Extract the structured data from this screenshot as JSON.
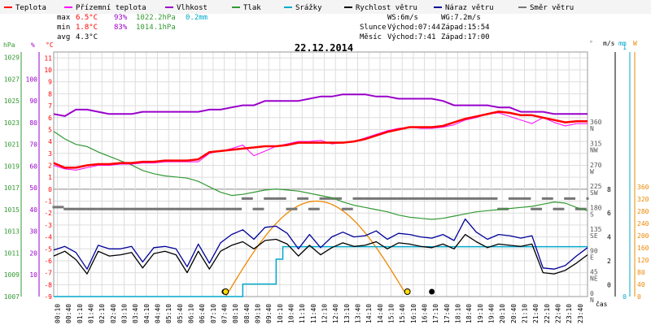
{
  "legend": [
    {
      "label": "Teplota",
      "color": "#ff0000"
    },
    {
      "label": "Přízemní teplota",
      "color": "#ff00ff"
    },
    {
      "label": "Vlhkost",
      "color": "#9900cc"
    },
    {
      "label": "Tlak",
      "color": "#339933"
    },
    {
      "label": "Srážky",
      "color": "#00aacc"
    },
    {
      "label": "Rychlost větru",
      "color": "#000000"
    },
    {
      "label": "Náraz větru",
      "color": "#000099"
    },
    {
      "label": "Směr větru",
      "color": "#777777"
    }
  ],
  "stats": {
    "max_label": "max",
    "max_temp": "6.5°C",
    "max_hum": "93%",
    "max_press": "1022.2hPa",
    "precip": "0.2mm",
    "min_label": "min",
    "min_temp": "1.8°C",
    "min_hum": "83%",
    "min_press": "1014.1hPa",
    "avg_label": "avg",
    "avg_temp": "4.3°C"
  },
  "sun_moon": {
    "ws": "WS:6m/s",
    "wg": "WG:7.2m/s",
    "sun_label": "Slunce",
    "sun_rise": "Východ:07:44",
    "sun_set": "Západ:15:54",
    "moon_label": "Měsíc",
    "moon_rise": "Východ:7:41",
    "moon_set": "Západ:17:00"
  },
  "colors": {
    "temp": "#ff0000",
    "ground": "#ff00ff",
    "humidity": "#9900cc",
    "pressure": "#339933",
    "rain": "#00aacc",
    "wind": "#000000",
    "gust": "#000099",
    "direction": "#777777",
    "sun": "#ee8800",
    "grid": "#dddddd"
  },
  "chart_data": {
    "type": "line",
    "title": "22.12.2014",
    "x_label": "čas",
    "x_ticks": [
      "00:10",
      "00:40",
      "01:10",
      "01:40",
      "02:10",
      "02:40",
      "03:10",
      "03:40",
      "04:10",
      "04:40",
      "05:10",
      "05:40",
      "06:10",
      "06:40",
      "07:10",
      "07:40",
      "08:10",
      "08:40",
      "09:10",
      "09:40",
      "10:10",
      "10:40",
      "11:10",
      "11:40",
      "12:10",
      "12:40",
      "13:10",
      "13:40",
      "14:10",
      "14:40",
      "15:10",
      "15:40",
      "16:10",
      "16:40",
      "17:10",
      "17:40",
      "18:10",
      "18:40",
      "19:10",
      "19:40",
      "20:10",
      "20:40",
      "21:10",
      "21:40",
      "22:10",
      "22:40",
      "23:10",
      "23:40"
    ],
    "axes": {
      "pressure": {
        "unit": "hPa",
        "ticks": [
          1007,
          1009,
          1011,
          1013,
          1015,
          1017,
          1019,
          1021,
          1023,
          1025,
          1027,
          1029
        ]
      },
      "humidity": {
        "unit": "%",
        "ticks": [
          10,
          20,
          30,
          40,
          50,
          60,
          70,
          80,
          90,
          100
        ]
      },
      "temperature": {
        "unit": "°C",
        "ticks": [
          -9,
          -8,
          -7,
          -6,
          -5,
          -4,
          -3,
          -2,
          -1,
          0,
          1,
          2,
          3,
          4,
          5,
          6,
          7,
          8,
          9,
          10,
          11
        ]
      },
      "direction": {
        "unit": "°",
        "ticks": [
          {
            "v": 0,
            "l": "0 N"
          },
          {
            "v": 45,
            "l": "45 NE"
          },
          {
            "v": 90,
            "l": "90 E"
          },
          {
            "v": 135,
            "l": "135 SE"
          },
          {
            "v": 180,
            "l": "180 S"
          },
          {
            "v": 225,
            "l": "225 SW"
          },
          {
            "v": 270,
            "l": "270 W"
          },
          {
            "v": 315,
            "l": "315 NW"
          },
          {
            "v": 360,
            "l": "360 N"
          }
        ]
      },
      "wind": {
        "unit": "m/s",
        "ticks": [
          0,
          2,
          4,
          6,
          8
        ]
      },
      "precip": {
        "unit": "mm",
        "ticks": [
          0,
          1
        ]
      },
      "sun_alt": {
        "unit": "W",
        "ticks": [
          0,
          40,
          80,
          120,
          160,
          200,
          240,
          280,
          320,
          360
        ]
      }
    },
    "series": [
      {
        "name": "Teplota",
        "unit": "°C",
        "x": [
          0,
          0.5,
          1,
          1.5,
          2,
          2.5,
          3,
          3.5,
          4,
          4.5,
          5,
          5.5,
          6,
          6.5,
          7,
          7.5,
          8,
          8.5,
          9,
          9.5,
          10,
          10.5,
          11,
          11.5,
          12,
          12.5,
          13,
          13.5,
          14,
          14.5,
          15,
          15.5,
          16,
          16.5,
          17,
          17.5,
          18,
          18.5,
          19,
          19.5,
          20,
          20.5,
          21,
          21.5,
          22,
          22.5,
          23,
          23.5,
          24
        ],
        "values": [
          2.2,
          1.8,
          1.8,
          2.0,
          2.1,
          2.1,
          2.2,
          2.2,
          2.3,
          2.3,
          2.4,
          2.4,
          2.4,
          2.5,
          3.1,
          3.2,
          3.3,
          3.4,
          3.5,
          3.6,
          3.6,
          3.7,
          3.9,
          3.9,
          3.9,
          3.9,
          3.9,
          4.0,
          4.2,
          4.5,
          4.8,
          5.0,
          5.2,
          5.2,
          5.2,
          5.3,
          5.6,
          5.9,
          6.1,
          6.3,
          6.5,
          6.4,
          6.2,
          6.2,
          6.0,
          5.8,
          5.6,
          5.7,
          5.7
        ]
      },
      {
        "name": "Přízemní teplota",
        "unit": "°C",
        "x": [
          0,
          0.5,
          1,
          1.5,
          2,
          2.5,
          3,
          3.5,
          4,
          4.5,
          5,
          5.5,
          6,
          6.5,
          7,
          7.5,
          8,
          8.5,
          9,
          9.5,
          10,
          10.5,
          11,
          11.5,
          12,
          12.5,
          13,
          13.5,
          14,
          14.5,
          15,
          15.5,
          16,
          16.5,
          17,
          17.5,
          18,
          18.5,
          19,
          19.5,
          20,
          20.5,
          21,
          21.5,
          22,
          22.5,
          23,
          23.5,
          24
        ],
        "values": [
          2.0,
          1.7,
          1.6,
          1.8,
          2.0,
          2.0,
          2.1,
          2.1,
          2.2,
          2.2,
          2.3,
          2.3,
          2.3,
          2.3,
          3.0,
          3.2,
          3.4,
          3.7,
          2.8,
          3.2,
          3.6,
          3.8,
          4.0,
          4.0,
          4.1,
          3.8,
          3.9,
          4.0,
          4.3,
          4.6,
          4.9,
          5.1,
          5.2,
          5.1,
          5.1,
          5.2,
          5.4,
          5.8,
          6.0,
          6.3,
          6.4,
          6.1,
          5.8,
          5.5,
          6.0,
          5.6,
          5.3,
          5.5,
          5.5
        ]
      },
      {
        "name": "Vlhkost",
        "unit": "%",
        "x": [
          0,
          0.5,
          1,
          1.5,
          2,
          2.5,
          3,
          3.5,
          4,
          4.5,
          5,
          5.5,
          6,
          6.5,
          7,
          7.5,
          8,
          8.5,
          9,
          9.5,
          10,
          10.5,
          11,
          11.5,
          12,
          12.5,
          13,
          13.5,
          14,
          14.5,
          15,
          15.5,
          16,
          16.5,
          17,
          17.5,
          18,
          18.5,
          19,
          19.5,
          20,
          20.5,
          21,
          21.5,
          22,
          22.5,
          23,
          23.5,
          24
        ],
        "values": [
          84,
          83,
          86,
          86,
          85,
          84,
          84,
          84,
          85,
          85,
          85,
          85,
          85,
          85,
          86,
          86,
          87,
          88,
          88,
          90,
          90,
          90,
          90,
          91,
          92,
          92,
          93,
          93,
          93,
          92,
          92,
          91,
          91,
          91,
          91,
          90,
          88,
          88,
          88,
          88,
          87,
          87,
          85,
          85,
          85,
          84,
          84,
          84,
          84
        ]
      },
      {
        "name": "Tlak",
        "unit": "hPa",
        "x": [
          0,
          0.5,
          1,
          1.5,
          2,
          2.5,
          3,
          3.5,
          4,
          4.5,
          5,
          5.5,
          6,
          6.5,
          7,
          7.5,
          8,
          8.5,
          9,
          9.5,
          10,
          10.5,
          11,
          11.5,
          12,
          12.5,
          13,
          13.5,
          14,
          14.5,
          15,
          15.5,
          16,
          16.5,
          17,
          17.5,
          18,
          18.5,
          19,
          19.5,
          20,
          20.5,
          21,
          21.5,
          22,
          22.5,
          23,
          23.5,
          24
        ],
        "values": [
          1022.2,
          1021.5,
          1021.0,
          1020.8,
          1020.3,
          1019.9,
          1019.5,
          1019.1,
          1018.6,
          1018.3,
          1018.1,
          1018.0,
          1017.9,
          1017.6,
          1017.1,
          1016.6,
          1016.3,
          1016.4,
          1016.6,
          1016.8,
          1016.9,
          1016.8,
          1016.7,
          1016.5,
          1016.3,
          1016.1,
          1015.7,
          1015.4,
          1015.2,
          1015.0,
          1014.8,
          1014.5,
          1014.3,
          1014.2,
          1014.1,
          1014.2,
          1014.4,
          1014.6,
          1014.8,
          1014.9,
          1015.0,
          1015.1,
          1015.2,
          1015.3,
          1015.5,
          1015.7,
          1015.6,
          1015.2,
          1014.9
        ]
      },
      {
        "name": "Rychlost větru",
        "unit": "m/s",
        "x": [
          0,
          0.5,
          1,
          1.5,
          2,
          2.5,
          3,
          3.5,
          4,
          4.5,
          5,
          5.5,
          6,
          6.5,
          7,
          7.5,
          8,
          8.5,
          9,
          9.5,
          10,
          10.5,
          11,
          11.5,
          12,
          12.5,
          13,
          13.5,
          14,
          14.5,
          15,
          15.5,
          16,
          16.5,
          17,
          17.5,
          18,
          18.5,
          19,
          19.5,
          20,
          20.5,
          21,
          21.5,
          22,
          22.5,
          23,
          23.5,
          24
        ],
        "values": [
          2.4,
          2.8,
          2.1,
          0.9,
          2.8,
          2.4,
          2.5,
          2.7,
          1.4,
          2.6,
          2.8,
          2.5,
          1.0,
          2.8,
          1.3,
          2.8,
          3.3,
          3.6,
          3.0,
          3.7,
          3.8,
          3.4,
          2.4,
          3.3,
          2.5,
          3.1,
          3.5,
          3.2,
          3.3,
          3.6,
          3.0,
          3.5,
          3.4,
          3.2,
          3.1,
          3.4,
          3.0,
          4.2,
          3.6,
          3.1,
          3.4,
          3.3,
          3.2,
          3.4,
          1.0,
          0.9,
          1.2,
          1.8,
          2.5
        ]
      },
      {
        "name": "Náraz větru",
        "unit": "m/s",
        "x": [
          0,
          0.5,
          1,
          1.5,
          2,
          2.5,
          3,
          3.5,
          4,
          4.5,
          5,
          5.5,
          6,
          6.5,
          7,
          7.5,
          8,
          8.5,
          9,
          9.5,
          10,
          10.5,
          11,
          11.5,
          12,
          12.5,
          13,
          13.5,
          14,
          14.5,
          15,
          15.5,
          16,
          16.5,
          17,
          17.5,
          18,
          18.5,
          19,
          19.5,
          20,
          20.5,
          21,
          21.5,
          22,
          22.5,
          23,
          23.5,
          24
        ],
        "values": [
          2.9,
          3.2,
          2.7,
          1.3,
          3.3,
          3.0,
          3.0,
          3.2,
          1.9,
          3.1,
          3.2,
          3.0,
          1.5,
          3.4,
          1.8,
          3.5,
          4.2,
          4.6,
          3.8,
          4.8,
          4.9,
          4.3,
          3.0,
          4.2,
          3.1,
          4.0,
          4.4,
          4.0,
          4.1,
          4.5,
          3.8,
          4.3,
          4.2,
          4.0,
          3.9,
          4.2,
          3.7,
          5.5,
          4.4,
          3.8,
          4.2,
          4.1,
          3.9,
          4.1,
          1.4,
          1.3,
          1.6,
          2.4,
          3.1
        ]
      },
      {
        "name": "Směr větru",
        "unit": "°",
        "x": [
          0,
          0.5,
          1,
          1.5,
          2,
          2.5,
          3,
          3.5,
          4,
          4.5,
          5,
          5.5,
          6,
          6.5,
          7,
          7.5,
          8,
          8.5,
          9,
          9.5,
          10,
          10.5,
          11,
          11.5,
          12,
          12.5,
          13,
          13.5,
          14,
          14.5,
          15,
          15.5,
          16,
          16.5,
          17,
          17.5,
          18,
          18.5,
          19,
          19.5,
          20,
          20.5,
          21,
          21.5,
          22,
          22.5,
          23,
          23.5,
          24
        ],
        "values": [
          188,
          184,
          184,
          184,
          184,
          184,
          184,
          184,
          184,
          184,
          184,
          184,
          184,
          184,
          184,
          184,
          184,
          206,
          184,
          206,
          206,
          184,
          206,
          184,
          206,
          206,
          184,
          206,
          206,
          206,
          206,
          206,
          206,
          206,
          206,
          206,
          206,
          206,
          206,
          206,
          184,
          206,
          206,
          184,
          206,
          184,
          206,
          184,
          206
        ]
      },
      {
        "name": "Srážky",
        "unit": "mm",
        "x": [
          0,
          7.5,
          8.0,
          8.5,
          9.5,
          10.0,
          10.3,
          11.0,
          24
        ],
        "values": [
          0,
          0,
          0,
          0.05,
          0.05,
          0.15,
          0.2,
          0.2,
          0.2
        ]
      }
    ],
    "sun": {
      "rise": 7.73,
      "set": 15.9,
      "peak_hours": 11.8
    },
    "moon": {
      "rise": 7.68,
      "set": 17.0
    }
  }
}
